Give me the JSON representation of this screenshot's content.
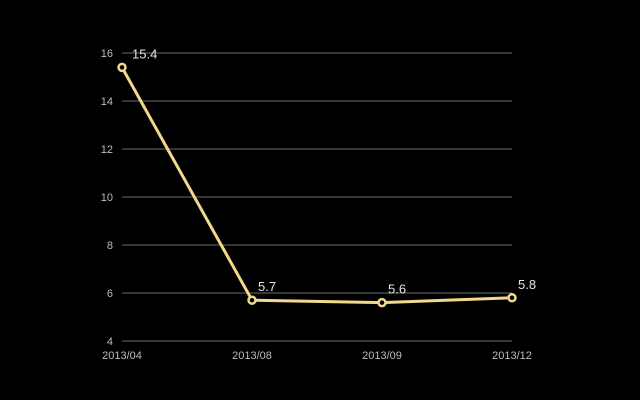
{
  "chart_data": {
    "type": "line",
    "title": "",
    "xlabel": "",
    "ylabel": "",
    "categories": [
      "2013/04",
      "2013/08",
      "2013/09",
      "2013/12"
    ],
    "series": [
      {
        "values": [
          15.4,
          5.7,
          5.6,
          5.8
        ]
      }
    ],
    "data_labels": [
      "15.4",
      "5.7",
      "5.6",
      "5.8"
    ],
    "ylim": [
      4,
      16
    ],
    "yticks": [
      4,
      6,
      8,
      10,
      12,
      14,
      16
    ],
    "grid": true,
    "legend": "none",
    "colors": {
      "background": "#000000",
      "line": "#f2d98a",
      "grid": "#6a6a6a",
      "text": "#e6e6e6"
    }
  }
}
